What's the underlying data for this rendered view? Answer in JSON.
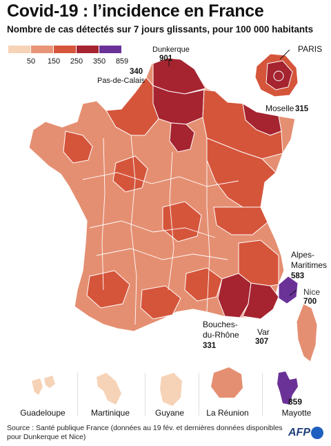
{
  "header": {
    "title": "Covid-19 : l’incidence en France",
    "subtitle": "Nombre de cas détectés sur 7 jours glissants, pour 100 000 habitants"
  },
  "legend": {
    "colors": [
      "#f6d2b6",
      "#e89477",
      "#d5553b",
      "#a52430",
      "#6a3297"
    ],
    "labels": [
      "50",
      "150",
      "250",
      "350",
      "859"
    ]
  },
  "callouts": {
    "dunkerque_name": "Dunkerque",
    "dunkerque_value": "901",
    "pdc_value": "340",
    "pdc_name": "Pas-de-Calais",
    "paris_name": "PARIS",
    "moselle_name": "Moselle",
    "moselle_value": "315",
    "am_name_1": "Alpes-",
    "am_name_2": "Maritimes",
    "am_value": "583",
    "nice_name": "Nice",
    "nice_value": "700",
    "bdr_name_1": "Bouches-",
    "bdr_name_2": "du-Rhône",
    "bdr_value": "331",
    "var_name": "Var",
    "var_value": "307"
  },
  "overseas": {
    "guadeloupe": "Guadeloupe",
    "martinique": "Martinique",
    "guyane": "Guyane",
    "reunion": "La Réunion",
    "mayotte": "Mayotte",
    "mayotte_value": "859"
  },
  "footer": {
    "source_line1": "Source : Santé publique France (données au 19 fév. et dernières données disponibles",
    "source_line2": "pour Dunkerque et Nice)",
    "logo": "AFP"
  }
}
